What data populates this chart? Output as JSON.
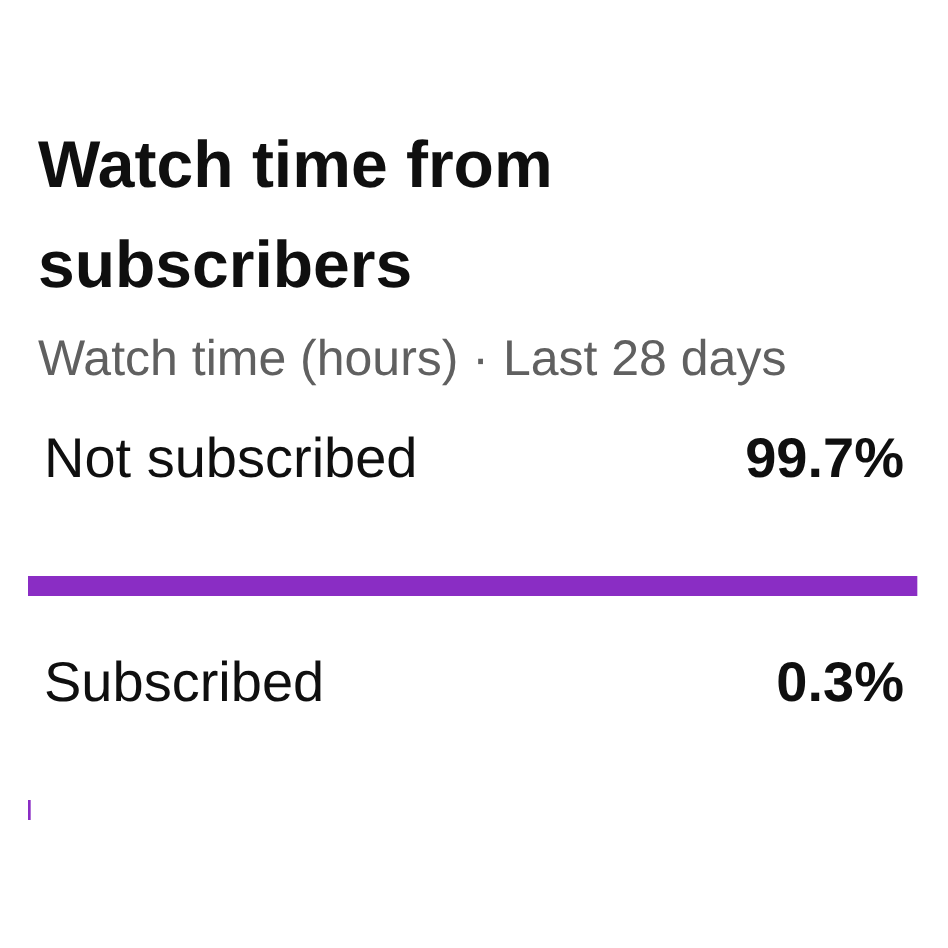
{
  "chart_data": {
    "type": "bar",
    "orientation": "horizontal",
    "title": "Watch time from subscribers",
    "subtitle": "Watch time (hours) · Last 28 days",
    "categories": [
      "Not subscribed",
      "Subscribed"
    ],
    "values": [
      99.7,
      0.3
    ],
    "value_labels": [
      "99.7%",
      "0.3%"
    ],
    "color": "#8a2dc4",
    "xlim": [
      0,
      100
    ],
    "tick_labels": false
  }
}
